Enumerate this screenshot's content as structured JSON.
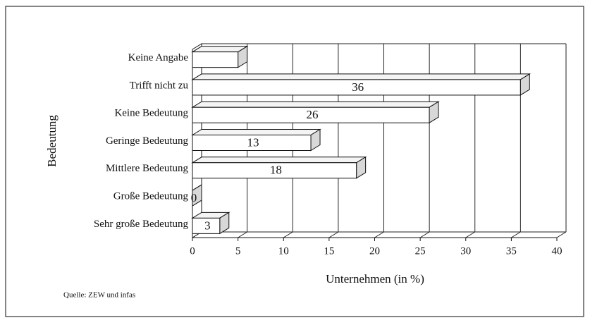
{
  "chart_data": {
    "type": "bar3d_horizontal",
    "categories": [
      "Keine Angabe",
      "Trifft nicht zu",
      "Keine Bedeutung",
      "Geringe Bedeutung",
      "Mittlere Bedeutung",
      "Große Bedeutung",
      "Sehr große Bedeutung"
    ],
    "values": [
      5,
      36,
      26,
      13,
      18,
      0,
      3
    ],
    "value_labels": [
      null,
      "36",
      "26",
      "13",
      "18",
      "0",
      "3"
    ],
    "color": "#ffffff",
    "xlim": [
      0,
      40
    ],
    "xticks": [
      0,
      5,
      10,
      15,
      20,
      25,
      30,
      35,
      40
    ],
    "x_label": "Unternehmen (in %)",
    "y_label": "Bedeutung",
    "grid": true,
    "source": "Quelle: ZEW und infas"
  }
}
